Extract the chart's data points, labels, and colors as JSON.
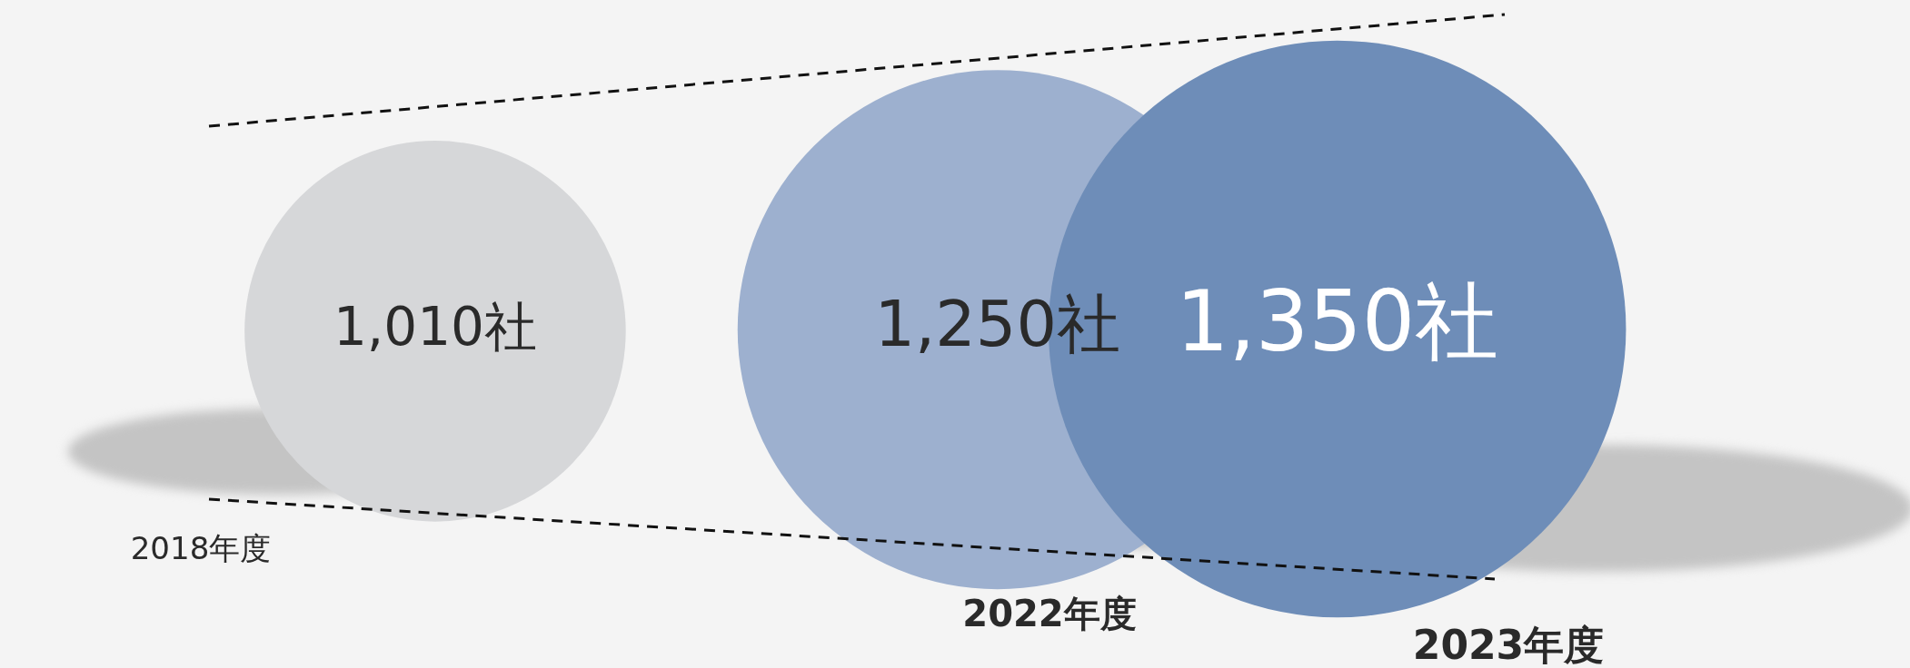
{
  "chart_data": {
    "type": "other",
    "categories": [
      "2018年度",
      "2022年度",
      "2023年度"
    ],
    "values": [
      1010,
      1250,
      1350
    ],
    "value_labels": [
      "1,010社",
      "1,250社",
      "1,350社"
    ],
    "colors": [
      "#d6d7d9",
      "#9db0cf",
      "#6e8db8"
    ]
  }
}
